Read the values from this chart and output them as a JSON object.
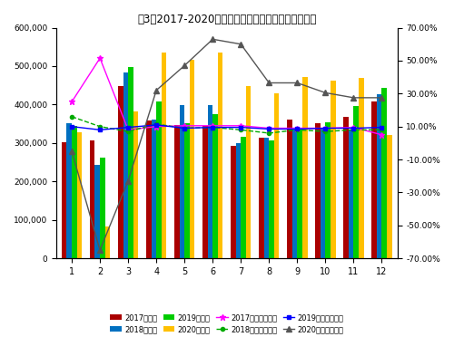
{
  "title": "图3：2017-2020年月度商用车销售量及同比变化情况",
  "months": [
    1,
    2,
    3,
    4,
    5,
    6,
    7,
    8,
    9,
    10,
    11,
    12
  ],
  "sales_2017": [
    302000,
    307000,
    448000,
    358000,
    346000,
    344000,
    293000,
    315000,
    362000,
    351000,
    367000,
    408000
  ],
  "sales_2018": [
    351000,
    243000,
    483000,
    362000,
    399000,
    399000,
    299000,
    315000,
    337000,
    337000,
    332000,
    428000
  ],
  "sales_2019": [
    345000,
    262000,
    498000,
    407000,
    352000,
    374000,
    316000,
    306000,
    340000,
    354000,
    396000,
    444000
  ],
  "sales_2020": [
    328000,
    82000,
    383000,
    536000,
    517000,
    536000,
    447000,
    430000,
    472000,
    462000,
    469000,
    322000
  ],
  "rate_2017": [
    25.0,
    51.5,
    8.0,
    10.0,
    10.5,
    10.5,
    10.5,
    9.0,
    9.0,
    9.0,
    9.5,
    5.0
  ],
  "rate_2018": [
    16.0,
    10.0,
    7.0,
    11.5,
    9.0,
    9.5,
    8.0,
    6.0,
    8.0,
    7.0,
    8.0,
    8.0
  ],
  "rate_2019": [
    10.0,
    8.0,
    9.5,
    11.0,
    9.0,
    9.5,
    9.5,
    8.5,
    8.5,
    9.0,
    9.0,
    9.5
  ],
  "rate_2020": [
    -5.0,
    -65.0,
    -23.0,
    32.0,
    47.0,
    63.0,
    60.0,
    36.5,
    36.5,
    30.5,
    27.5,
    27.5
  ],
  "bar_color_2017": "#aa0000",
  "bar_color_2018": "#0070c0",
  "bar_color_2019": "#00cc00",
  "bar_color_2020": "#ffc000",
  "line_color_2017": "#ff00ff",
  "line_color_2018": "#00aa00",
  "line_color_2019": "#0000ff",
  "line_color_2020": "#555555",
  "ylim_left": [
    0,
    600000
  ],
  "ylim_right": [
    -70,
    70
  ],
  "yticks_left": [
    0,
    100000,
    200000,
    300000,
    400000,
    500000,
    600000
  ],
  "yticks_right": [
    -70,
    -50,
    -30,
    -10,
    10,
    30,
    50,
    70
  ],
  "legend_bar": [
    "2017年销量",
    "2018年销量",
    "2019年销量",
    "2020年销量"
  ],
  "legend_line": [
    "2017年同比增长率",
    "2018年同比增长率",
    "2019年同比增长率",
    "2020年同比增长率"
  ]
}
